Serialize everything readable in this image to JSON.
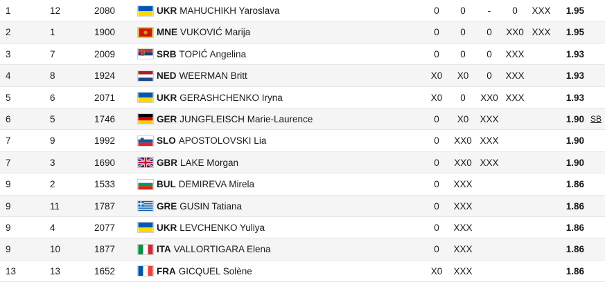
{
  "colors": {
    "row_alt_bg": "#f5f5f5",
    "divider": "#e6e6e6"
  },
  "rows": [
    {
      "rank": "1",
      "order": "12",
      "bib": "2080",
      "noc": "UKR",
      "name": "MAHUCHIKH Yaroslava",
      "flag": "ukraine-flag",
      "attempts": [
        "0",
        "0",
        "-",
        "0",
        "XXX"
      ],
      "result": "1.95",
      "note": ""
    },
    {
      "rank": "2",
      "order": "1",
      "bib": "1900",
      "noc": "MNE",
      "name": "VUKOVIĆ Marija",
      "flag": "montenegro-flag",
      "attempts": [
        "0",
        "0",
        "0",
        "XX0",
        "XXX"
      ],
      "result": "1.95",
      "note": ""
    },
    {
      "rank": "3",
      "order": "7",
      "bib": "2009",
      "noc": "SRB",
      "name": "TOPIĆ Angelina",
      "flag": "serbia-flag",
      "attempts": [
        "0",
        "0",
        "0",
        "XXX",
        ""
      ],
      "result": "1.93",
      "note": ""
    },
    {
      "rank": "4",
      "order": "8",
      "bib": "1924",
      "noc": "NED",
      "name": "WEERMAN Britt",
      "flag": "netherlands-flag",
      "attempts": [
        "X0",
        "X0",
        "0",
        "XXX",
        ""
      ],
      "result": "1.93",
      "note": ""
    },
    {
      "rank": "5",
      "order": "6",
      "bib": "2071",
      "noc": "UKR",
      "name": "GERASHCHENKO Iryna",
      "flag": "ukraine-flag",
      "attempts": [
        "X0",
        "0",
        "XX0",
        "XXX",
        ""
      ],
      "result": "1.93",
      "note": ""
    },
    {
      "rank": "6",
      "order": "5",
      "bib": "1746",
      "noc": "GER",
      "name": "JUNGFLEISCH Marie-Laurence",
      "flag": "germany-flag",
      "attempts": [
        "0",
        "X0",
        "XXX",
        "",
        ""
      ],
      "result": "1.90",
      "note": "SB"
    },
    {
      "rank": "7",
      "order": "9",
      "bib": "1992",
      "noc": "SLO",
      "name": "APOSTOLOVSKI Lia",
      "flag": "slovenia-flag",
      "attempts": [
        "0",
        "XX0",
        "XXX",
        "",
        ""
      ],
      "result": "1.90",
      "note": ""
    },
    {
      "rank": "7",
      "order": "3",
      "bib": "1690",
      "noc": "GBR",
      "name": "LAKE Morgan",
      "flag": "great-britain-flag",
      "attempts": [
        "0",
        "XX0",
        "XXX",
        "",
        ""
      ],
      "result": "1.90",
      "note": ""
    },
    {
      "rank": "9",
      "order": "2",
      "bib": "1533",
      "noc": "BUL",
      "name": "DEMIREVA Mirela",
      "flag": "bulgaria-flag",
      "attempts": [
        "0",
        "XXX",
        "",
        "",
        ""
      ],
      "result": "1.86",
      "note": ""
    },
    {
      "rank": "9",
      "order": "11",
      "bib": "1787",
      "noc": "GRE",
      "name": "GUSIN Tatiana",
      "flag": "greece-flag",
      "attempts": [
        "0",
        "XXX",
        "",
        "",
        ""
      ],
      "result": "1.86",
      "note": ""
    },
    {
      "rank": "9",
      "order": "4",
      "bib": "2077",
      "noc": "UKR",
      "name": "LEVCHENKO Yuliya",
      "flag": "ukraine-flag",
      "attempts": [
        "0",
        "XXX",
        "",
        "",
        ""
      ],
      "result": "1.86",
      "note": ""
    },
    {
      "rank": "9",
      "order": "10",
      "bib": "1877",
      "noc": "ITA",
      "name": "VALLORTIGARA Elena",
      "flag": "italy-flag",
      "attempts": [
        "0",
        "XXX",
        "",
        "",
        ""
      ],
      "result": "1.86",
      "note": ""
    },
    {
      "rank": "13",
      "order": "13",
      "bib": "1652",
      "noc": "FRA",
      "name": "GICQUEL Solène",
      "flag": "france-flag",
      "attempts": [
        "X0",
        "XXX",
        "",
        "",
        ""
      ],
      "result": "1.86",
      "note": ""
    }
  ]
}
